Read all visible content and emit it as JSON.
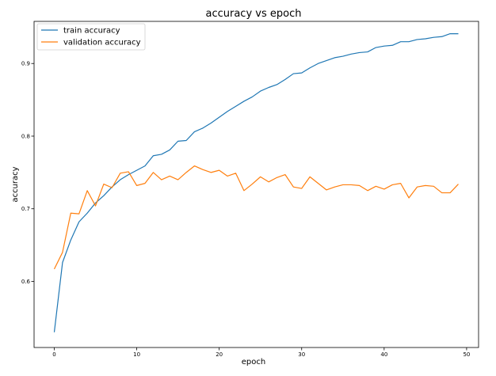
{
  "chart_data": {
    "type": "line",
    "title": "accuracy vs epoch",
    "xlabel": "epoch",
    "ylabel": "accuracy",
    "xlim": [
      -2.45,
      51.45
    ],
    "ylim": [
      0.509,
      0.958
    ],
    "xticks": [
      0,
      10,
      20,
      30,
      40,
      50
    ],
    "yticks": [
      0.6,
      0.7,
      0.8,
      0.9
    ],
    "grid": false,
    "legend": "upper-left",
    "x": [
      0,
      1,
      2,
      3,
      4,
      5,
      6,
      7,
      8,
      9,
      10,
      11,
      12,
      13,
      14,
      15,
      16,
      17,
      18,
      19,
      20,
      21,
      22,
      23,
      24,
      25,
      26,
      27,
      28,
      29,
      30,
      31,
      32,
      33,
      34,
      35,
      36,
      37,
      38,
      39,
      40,
      41,
      42,
      43,
      44,
      45,
      46,
      47,
      48,
      49
    ],
    "series": [
      {
        "name": "train accuracy",
        "color": "#1f77b4",
        "values": [
          0.53,
          0.626,
          0.657,
          0.682,
          0.694,
          0.708,
          0.718,
          0.73,
          0.74,
          0.747,
          0.753,
          0.759,
          0.773,
          0.775,
          0.781,
          0.793,
          0.794,
          0.806,
          0.811,
          0.818,
          0.826,
          0.834,
          0.841,
          0.848,
          0.854,
          0.862,
          0.867,
          0.871,
          0.878,
          0.886,
          0.887,
          0.894,
          0.9,
          0.904,
          0.908,
          0.91,
          0.913,
          0.915,
          0.916,
          0.922,
          0.924,
          0.925,
          0.93,
          0.93,
          0.933,
          0.934,
          0.936,
          0.937,
          0.941,
          0.941
        ]
      },
      {
        "name": "validation accuracy",
        "color": "#ff7f0e",
        "values": [
          0.617,
          0.64,
          0.694,
          0.693,
          0.725,
          0.704,
          0.734,
          0.729,
          0.749,
          0.751,
          0.732,
          0.735,
          0.75,
          0.74,
          0.745,
          0.74,
          0.75,
          0.759,
          0.754,
          0.75,
          0.753,
          0.745,
          0.749,
          0.725,
          0.734,
          0.744,
          0.737,
          0.743,
          0.747,
          0.73,
          0.728,
          0.744,
          0.735,
          0.726,
          0.73,
          0.733,
          0.733,
          0.732,
          0.725,
          0.731,
          0.727,
          0.733,
          0.735,
          0.715,
          0.73,
          0.732,
          0.731,
          0.722,
          0.722,
          0.734
        ]
      }
    ]
  }
}
